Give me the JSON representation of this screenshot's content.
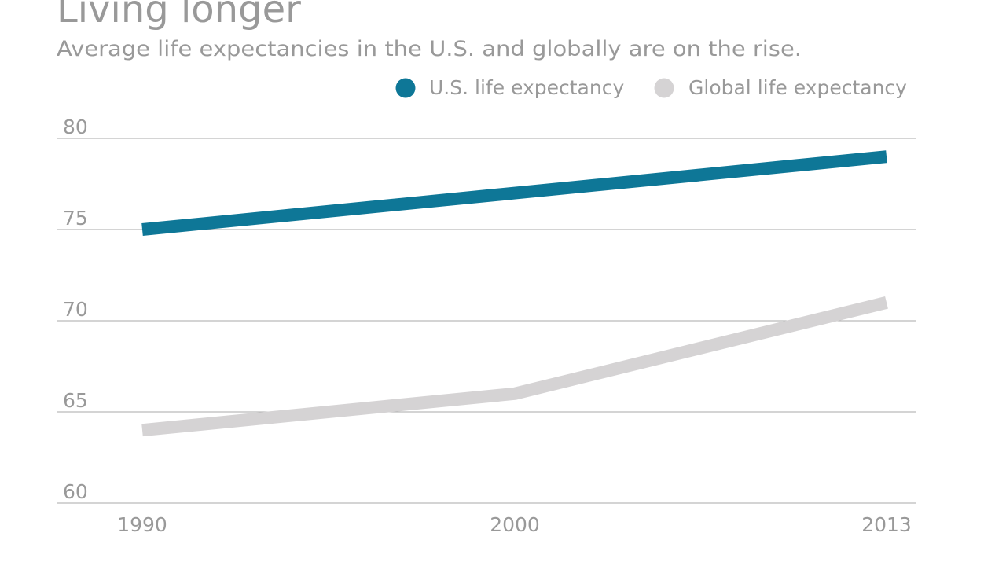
{
  "chart_data": {
    "type": "line",
    "title": "Living longer",
    "subtitle": "Average life expectancies in the U.S. and globally are on the rise.",
    "categories": [
      "1990",
      "2000",
      "2013"
    ],
    "ylim": [
      60,
      80
    ],
    "yticks": [
      "60",
      "65",
      "70",
      "75",
      "80"
    ],
    "grid": true,
    "legend_placement": "top-right",
    "series": [
      {
        "name": "U.S. life expectancy",
        "values": [
          75.0,
          77.0,
          79.0
        ],
        "color": "#0e7797"
      },
      {
        "name": "Global life expectancy",
        "values": [
          64.0,
          66.0,
          71.0
        ],
        "color": "#d5d3d4"
      }
    ]
  }
}
